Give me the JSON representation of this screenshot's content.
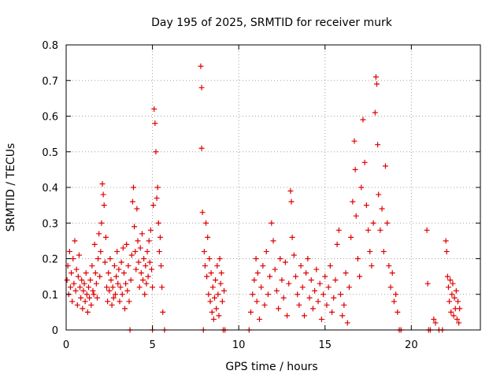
{
  "chart_data": {
    "type": "scatter",
    "title": "Day 195 of 2025, SRMTID for receiver murk",
    "xlabel": "GPS time / hours",
    "ylabel": "SRMTID / TECUs",
    "xlim": [
      0,
      24
    ],
    "ylim": [
      0,
      0.8
    ],
    "xticks": [
      0,
      5,
      10,
      15,
      20
    ],
    "yticks": [
      0,
      0.1,
      0.2,
      0.3,
      0.4,
      0.5,
      0.6,
      0.7,
      0.8
    ],
    "xtick_labels": [
      "0",
      "5",
      "10",
      "15",
      "20"
    ],
    "ytick_labels": [
      "0",
      "0.1",
      "0.2",
      "0.3",
      "0.4",
      "0.5",
      "0.6",
      "0.7",
      "0.8"
    ],
    "grid": true,
    "marker": "+",
    "color": "#e00000",
    "series": [
      {
        "name": "SRMTID",
        "points": [
          [
            0.05,
            0.14
          ],
          [
            0.1,
            0.18
          ],
          [
            0.15,
            0.1
          ],
          [
            0.2,
            0.22
          ],
          [
            0.25,
            0.12
          ],
          [
            0.3,
            0.16
          ],
          [
            0.35,
            0.08
          ],
          [
            0.4,
            0.2
          ],
          [
            0.45,
            0.13
          ],
          [
            0.5,
            0.25
          ],
          [
            0.55,
            0.11
          ],
          [
            0.6,
            0.17
          ],
          [
            0.65,
            0.07
          ],
          [
            0.7,
            0.15
          ],
          [
            0.75,
            0.21
          ],
          [
            0.8,
            0.12
          ],
          [
            0.85,
            0.09
          ],
          [
            0.9,
            0.14
          ],
          [
            0.95,
            0.06
          ],
          [
            1.0,
            0.11
          ],
          [
            1.05,
            0.13
          ],
          [
            1.1,
            0.08
          ],
          [
            1.15,
            0.16
          ],
          [
            1.2,
            0.1
          ],
          [
            1.25,
            0.05
          ],
          [
            1.3,
            0.12
          ],
          [
            1.35,
            0.09
          ],
          [
            1.4,
            0.14
          ],
          [
            1.45,
            0.07
          ],
          [
            1.5,
            0.18
          ],
          [
            1.55,
            0.11
          ],
          [
            1.6,
            0.1
          ],
          [
            1.65,
            0.24
          ],
          [
            1.7,
            0.16
          ],
          [
            1.75,
            0.13
          ],
          [
            1.8,
            0.09
          ],
          [
            1.85,
            0.2
          ],
          [
            1.9,
            0.27
          ],
          [
            1.95,
            0.15
          ],
          [
            2.0,
            0.22
          ],
          [
            2.05,
            0.3
          ],
          [
            2.1,
            0.41
          ],
          [
            2.15,
            0.38
          ],
          [
            2.2,
            0.35
          ],
          [
            2.25,
            0.19
          ],
          [
            2.3,
            0.26
          ],
          [
            2.35,
            0.12
          ],
          [
            2.4,
            0.08
          ],
          [
            2.45,
            0.16
          ],
          [
            2.5,
            0.11
          ],
          [
            2.55,
            0.2
          ],
          [
            2.6,
            0.14
          ],
          [
            2.65,
            0.07
          ],
          [
            2.7,
            0.12
          ],
          [
            2.75,
            0.09
          ],
          [
            2.8,
            0.18
          ],
          [
            2.85,
            0.1
          ],
          [
            2.9,
            0.15
          ],
          [
            2.95,
            0.22
          ],
          [
            3.0,
            0.13
          ],
          [
            3.05,
            0.17
          ],
          [
            3.1,
            0.08
          ],
          [
            3.15,
            0.12
          ],
          [
            3.2,
            0.19
          ],
          [
            3.25,
            0.1
          ],
          [
            3.3,
            0.23
          ],
          [
            3.35,
            0.16
          ],
          [
            3.4,
            0.06
          ],
          [
            3.45,
            0.13
          ],
          [
            3.5,
            0.24
          ],
          [
            3.55,
            0.11
          ],
          [
            3.6,
            0.18
          ],
          [
            3.65,
            0.08
          ],
          [
            3.7,
            0.0
          ],
          [
            3.75,
            0.14
          ],
          [
            3.8,
            0.21
          ],
          [
            3.85,
            0.36
          ],
          [
            3.9,
            0.4
          ],
          [
            3.95,
            0.29
          ],
          [
            4.0,
            0.22
          ],
          [
            4.05,
            0.17
          ],
          [
            4.1,
            0.34
          ],
          [
            4.15,
            0.25
          ],
          [
            4.2,
            0.19
          ],
          [
            4.25,
            0.12
          ],
          [
            4.3,
            0.23
          ],
          [
            4.35,
            0.16
          ],
          [
            4.4,
            0.27
          ],
          [
            4.45,
            0.14
          ],
          [
            4.5,
            0.2
          ],
          [
            4.55,
            0.1
          ],
          [
            4.6,
            0.18
          ],
          [
            4.65,
            0.13
          ],
          [
            4.7,
            0.22
          ],
          [
            4.75,
            0.15
          ],
          [
            4.8,
            0.25
          ],
          [
            4.85,
            0.19
          ],
          [
            4.9,
            0.28
          ],
          [
            4.95,
            0.17
          ],
          [
            5.0,
            0.0
          ],
          [
            5.0,
            0.12
          ],
          [
            5.05,
            0.35
          ],
          [
            5.1,
            0.62
          ],
          [
            5.15,
            0.58
          ],
          [
            5.2,
            0.5
          ],
          [
            5.25,
            0.37
          ],
          [
            5.3,
            0.4
          ],
          [
            5.35,
            0.3
          ],
          [
            5.4,
            0.22
          ],
          [
            5.45,
            0.26
          ],
          [
            5.5,
            0.18
          ],
          [
            5.55,
            0.12
          ],
          [
            5.6,
            0.05
          ],
          [
            5.7,
            0.0
          ],
          [
            7.8,
            0.74
          ],
          [
            7.85,
            0.68
          ],
          [
            7.85,
            0.51
          ],
          [
            7.9,
            0.33
          ],
          [
            7.95,
            0.0
          ],
          [
            8.0,
            0.22
          ],
          [
            8.05,
            0.18
          ],
          [
            8.1,
            0.3
          ],
          [
            8.15,
            0.15
          ],
          [
            8.2,
            0.26
          ],
          [
            8.25,
            0.1
          ],
          [
            8.3,
            0.2
          ],
          [
            8.35,
            0.08
          ],
          [
            8.4,
            0.16
          ],
          [
            8.45,
            0.05
          ],
          [
            8.5,
            0.12
          ],
          [
            8.55,
            0.03
          ],
          [
            8.6,
            0.09
          ],
          [
            8.65,
            0.14
          ],
          [
            8.7,
            0.06
          ],
          [
            8.75,
            0.18
          ],
          [
            8.8,
            0.1
          ],
          [
            8.85,
            0.04
          ],
          [
            8.9,
            0.2
          ],
          [
            8.95,
            0.13
          ],
          [
            9.0,
            0.16
          ],
          [
            9.05,
            0.08
          ],
          [
            9.1,
            0.0
          ],
          [
            9.15,
            0.11
          ],
          [
            9.2,
            0.0
          ],
          [
            10.6,
            0.0
          ],
          [
            10.7,
            0.05
          ],
          [
            10.8,
            0.1
          ],
          [
            10.9,
            0.14
          ],
          [
            11.0,
            0.2
          ],
          [
            11.05,
            0.08
          ],
          [
            11.1,
            0.16
          ],
          [
            11.2,
            0.03
          ],
          [
            11.3,
            0.12
          ],
          [
            11.4,
            0.18
          ],
          [
            11.5,
            0.07
          ],
          [
            11.6,
            0.22
          ],
          [
            11.7,
            0.1
          ],
          [
            11.8,
            0.15
          ],
          [
            11.9,
            0.3
          ],
          [
            12.0,
            0.25
          ],
          [
            12.1,
            0.17
          ],
          [
            12.2,
            0.11
          ],
          [
            12.3,
            0.06
          ],
          [
            12.4,
            0.2
          ],
          [
            12.5,
            0.14
          ],
          [
            12.6,
            0.09
          ],
          [
            12.7,
            0.19
          ],
          [
            12.8,
            0.04
          ],
          [
            12.9,
            0.13
          ],
          [
            13.0,
            0.39
          ],
          [
            13.05,
            0.36
          ],
          [
            13.1,
            0.26
          ],
          [
            13.2,
            0.21
          ],
          [
            13.3,
            0.15
          ],
          [
            13.4,
            0.1
          ],
          [
            13.5,
            0.07
          ],
          [
            13.6,
            0.18
          ],
          [
            13.7,
            0.12
          ],
          [
            13.8,
            0.04
          ],
          [
            13.9,
            0.16
          ],
          [
            14.0,
            0.2
          ],
          [
            14.1,
            0.09
          ],
          [
            14.2,
            0.14
          ],
          [
            14.3,
            0.06
          ],
          [
            14.4,
            0.11
          ],
          [
            14.5,
            0.17
          ],
          [
            14.6,
            0.08
          ],
          [
            14.7,
            0.13
          ],
          [
            14.8,
            0.03
          ],
          [
            14.9,
            0.1
          ],
          [
            15.0,
            0.15
          ],
          [
            15.1,
            0.07
          ],
          [
            15.2,
            0.12
          ],
          [
            15.3,
            0.18
          ],
          [
            15.4,
            0.05
          ],
          [
            15.5,
            0.09
          ],
          [
            15.6,
            0.14
          ],
          [
            15.7,
            0.24
          ],
          [
            15.8,
            0.28
          ],
          [
            15.9,
            0.1
          ],
          [
            16.0,
            0.04
          ],
          [
            16.1,
            0.07
          ],
          [
            16.2,
            0.16
          ],
          [
            16.3,
            0.02
          ],
          [
            16.4,
            0.12
          ],
          [
            16.5,
            0.26
          ],
          [
            16.6,
            0.36
          ],
          [
            16.7,
            0.53
          ],
          [
            16.75,
            0.45
          ],
          [
            16.8,
            0.32
          ],
          [
            16.9,
            0.2
          ],
          [
            17.0,
            0.15
          ],
          [
            17.1,
            0.4
          ],
          [
            17.2,
            0.59
          ],
          [
            17.3,
            0.47
          ],
          [
            17.4,
            0.35
          ],
          [
            17.5,
            0.28
          ],
          [
            17.6,
            0.22
          ],
          [
            17.7,
            0.18
          ],
          [
            17.8,
            0.3
          ],
          [
            17.9,
            0.61
          ],
          [
            17.95,
            0.71
          ],
          [
            18.0,
            0.69
          ],
          [
            18.05,
            0.52
          ],
          [
            18.1,
            0.38
          ],
          [
            18.2,
            0.28
          ],
          [
            18.3,
            0.34
          ],
          [
            18.4,
            0.22
          ],
          [
            18.5,
            0.46
          ],
          [
            18.6,
            0.3
          ],
          [
            18.7,
            0.18
          ],
          [
            18.8,
            0.12
          ],
          [
            18.9,
            0.16
          ],
          [
            19.0,
            0.08
          ],
          [
            19.1,
            0.1
          ],
          [
            19.2,
            0.05
          ],
          [
            19.3,
            0.0
          ],
          [
            19.4,
            0.0
          ],
          [
            20.9,
            0.28
          ],
          [
            20.95,
            0.13
          ],
          [
            21.0,
            0.0
          ],
          [
            21.1,
            0.0
          ],
          [
            21.3,
            0.03
          ],
          [
            21.4,
            0.02
          ],
          [
            21.6,
            0.0
          ],
          [
            21.8,
            0.0
          ],
          [
            22.0,
            0.25
          ],
          [
            22.05,
            0.22
          ],
          [
            22.1,
            0.15
          ],
          [
            22.15,
            0.12
          ],
          [
            22.2,
            0.08
          ],
          [
            22.25,
            0.14
          ],
          [
            22.3,
            0.05
          ],
          [
            22.35,
            0.1
          ],
          [
            22.4,
            0.13
          ],
          [
            22.45,
            0.04
          ],
          [
            22.5,
            0.09
          ],
          [
            22.55,
            0.06
          ],
          [
            22.6,
            0.11
          ],
          [
            22.65,
            0.03
          ],
          [
            22.7,
            0.08
          ],
          [
            22.75,
            0.02
          ],
          [
            22.8,
            0.06
          ]
        ]
      }
    ]
  }
}
